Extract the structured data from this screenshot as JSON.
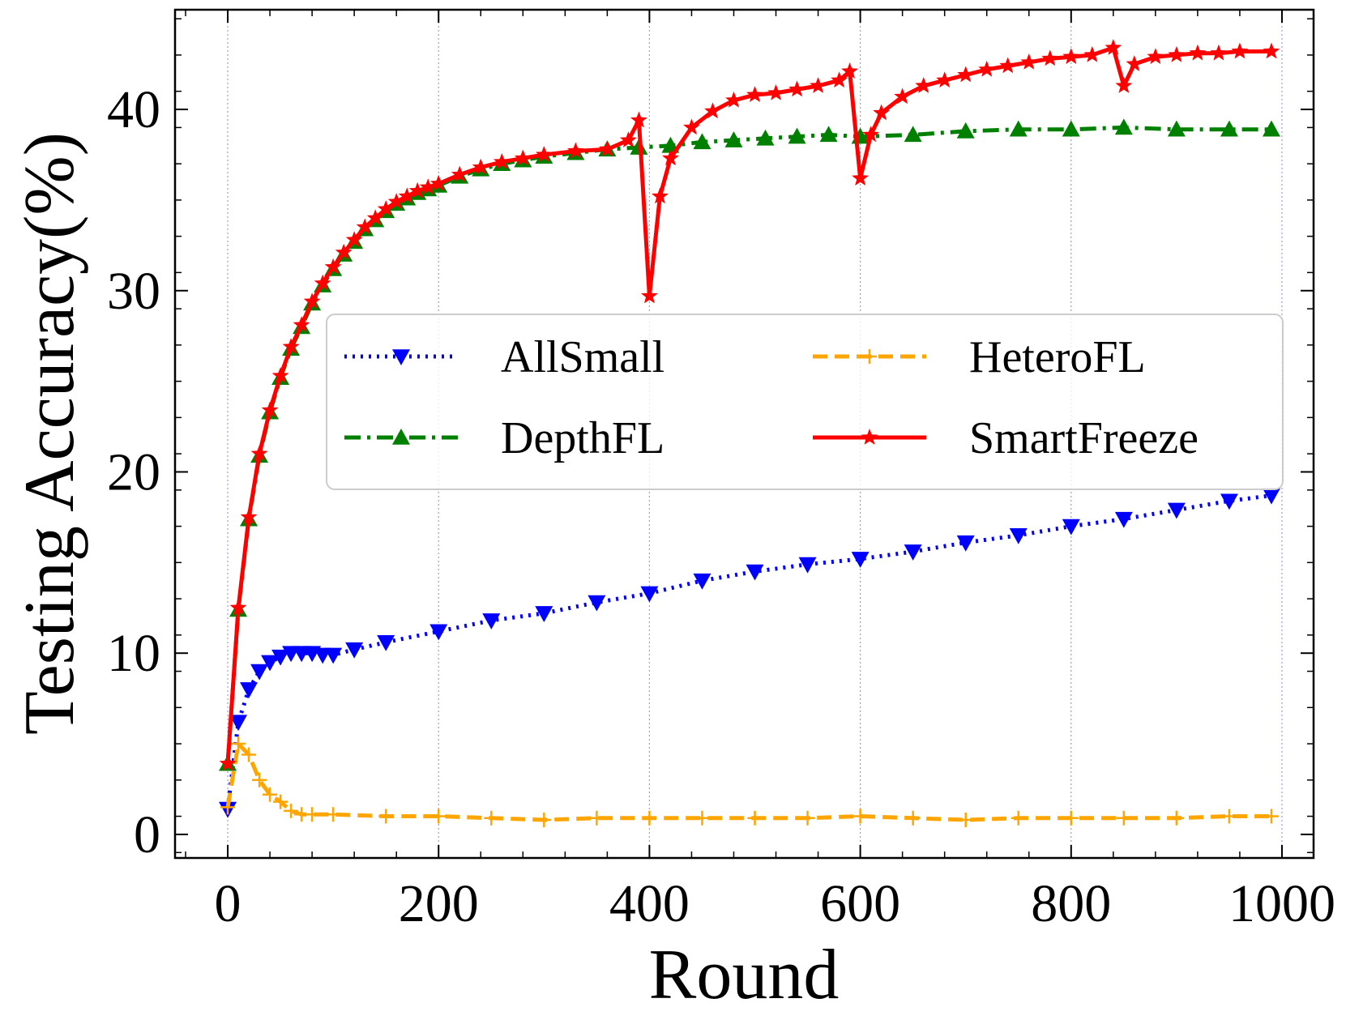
{
  "chart_data": {
    "type": "line",
    "title": "",
    "xlabel": "Round",
    "ylabel": "Testing Accuracy(%)",
    "xlim": [
      -50,
      1030
    ],
    "ylim": [
      -1.3,
      45.5
    ],
    "xticks": [
      0,
      200,
      400,
      600,
      800,
      1000
    ],
    "yticks": [
      0,
      10,
      20,
      30,
      40
    ],
    "xtick_labels": [
      "0",
      "200",
      "400",
      "600",
      "800",
      "1000"
    ],
    "ytick_labels": [
      "0",
      "10",
      "20",
      "30",
      "40"
    ],
    "grid": "vertical dotted",
    "legend_position": "center-right",
    "legend_columns": 2,
    "series": [
      {
        "name": "AllSmall",
        "color": "#0000ff",
        "linestyle": "dotted",
        "marker": "triangle-down",
        "x": [
          0,
          10,
          20,
          30,
          40,
          50,
          60,
          70,
          80,
          90,
          100,
          120,
          150,
          200,
          250,
          300,
          350,
          400,
          450,
          500,
          550,
          600,
          650,
          700,
          750,
          800,
          850,
          900,
          950,
          990
        ],
        "values": [
          1.4,
          6.2,
          8.0,
          9.0,
          9.5,
          9.8,
          10.0,
          10.0,
          10.0,
          9.9,
          9.9,
          10.2,
          10.6,
          11.2,
          11.8,
          12.2,
          12.8,
          13.3,
          14.0,
          14.5,
          14.9,
          15.2,
          15.6,
          16.1,
          16.5,
          17.0,
          17.4,
          17.9,
          18.4,
          18.7
        ]
      },
      {
        "name": "HeteroFL",
        "color": "#ffa500",
        "linestyle": "dashed",
        "marker": "plus",
        "x": [
          0,
          10,
          20,
          30,
          40,
          50,
          60,
          70,
          80,
          100,
          150,
          200,
          250,
          300,
          350,
          400,
          450,
          500,
          550,
          600,
          650,
          700,
          750,
          800,
          850,
          900,
          950,
          990
        ],
        "values": [
          1.5,
          5.0,
          4.4,
          3.0,
          2.2,
          1.8,
          1.3,
          1.1,
          1.1,
          1.1,
          1.0,
          1.0,
          0.9,
          0.8,
          0.9,
          0.9,
          0.9,
          0.9,
          0.9,
          1.0,
          0.9,
          0.8,
          0.9,
          0.9,
          0.9,
          0.9,
          1.0,
          1.0
        ]
      },
      {
        "name": "DepthFL",
        "color": "#008000",
        "linestyle": "dashdot",
        "marker": "triangle-up",
        "x": [
          0,
          10,
          20,
          30,
          40,
          50,
          60,
          70,
          80,
          90,
          100,
          110,
          120,
          130,
          140,
          150,
          160,
          170,
          180,
          190,
          200,
          220,
          240,
          260,
          280,
          300,
          330,
          360,
          390,
          420,
          450,
          480,
          510,
          540,
          570,
          600,
          650,
          700,
          750,
          800,
          850,
          900,
          950,
          990
        ],
        "values": [
          3.9,
          12.4,
          17.4,
          20.9,
          23.3,
          25.2,
          26.8,
          28.0,
          29.3,
          30.3,
          31.2,
          32.0,
          32.7,
          33.4,
          33.9,
          34.4,
          34.8,
          35.1,
          35.4,
          35.6,
          35.8,
          36.3,
          36.7,
          37.0,
          37.2,
          37.4,
          37.6,
          37.8,
          37.9,
          38.0,
          38.2,
          38.3,
          38.4,
          38.5,
          38.6,
          38.5,
          38.6,
          38.8,
          38.9,
          38.9,
          39.0,
          38.9,
          38.9,
          38.9
        ]
      },
      {
        "name": "SmartFreeze",
        "color": "#ff0000",
        "linestyle": "solid",
        "marker": "star",
        "x": [
          0,
          10,
          20,
          30,
          40,
          50,
          60,
          70,
          80,
          90,
          100,
          110,
          120,
          130,
          140,
          150,
          160,
          170,
          180,
          190,
          200,
          220,
          240,
          260,
          280,
          300,
          330,
          360,
          380,
          390,
          400,
          410,
          420,
          440,
          460,
          480,
          500,
          520,
          540,
          560,
          580,
          590,
          600,
          610,
          620,
          640,
          660,
          680,
          700,
          720,
          740,
          760,
          780,
          800,
          820,
          840,
          850,
          860,
          880,
          900,
          920,
          940,
          960,
          990
        ],
        "values": [
          3.9,
          12.5,
          17.5,
          21.0,
          23.4,
          25.3,
          26.9,
          28.1,
          29.4,
          30.4,
          31.3,
          32.1,
          32.8,
          33.5,
          34.0,
          34.5,
          34.9,
          35.2,
          35.5,
          35.7,
          35.9,
          36.4,
          36.8,
          37.1,
          37.3,
          37.5,
          37.7,
          37.8,
          38.3,
          39.4,
          29.7,
          35.2,
          37.3,
          39.0,
          39.9,
          40.5,
          40.8,
          40.9,
          41.1,
          41.3,
          41.6,
          42.1,
          36.2,
          38.6,
          39.8,
          40.7,
          41.3,
          41.6,
          41.9,
          42.2,
          42.4,
          42.6,
          42.8,
          42.9,
          43.0,
          43.4,
          41.3,
          42.5,
          42.9,
          43.0,
          43.1,
          43.1,
          43.2,
          43.2
        ]
      }
    ]
  }
}
